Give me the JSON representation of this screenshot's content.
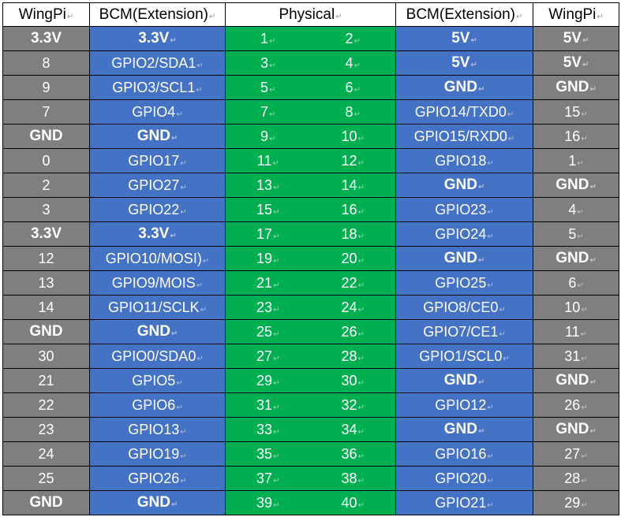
{
  "headers": {
    "wingpi_left": "WingPi",
    "bcm_left": "BCM(Extension)",
    "physical": "Physical",
    "bcm_right": "BCM(Extension)",
    "wingpi_right": "WingPi"
  },
  "rows": [
    {
      "wl": "3.3V",
      "bl": "3.3V",
      "pl": "1",
      "pr": "2",
      "br": "5V",
      "wr": "5V"
    },
    {
      "wl": "8",
      "bl": "GPIO2/SDA1",
      "pl": "3",
      "pr": "4",
      "br": "5V",
      "wr": "5V"
    },
    {
      "wl": "9",
      "bl": "GPIO3/SCL1",
      "pl": "5",
      "pr": "6",
      "br": "GND",
      "wr": "GND"
    },
    {
      "wl": "7",
      "bl": "GPIO4",
      "pl": "7",
      "pr": "8",
      "br": "GPIO14/TXD0",
      "wr": "15"
    },
    {
      "wl": "GND",
      "bl": "GND",
      "pl": "9",
      "pr": "10",
      "br": "GPIO15/RXD0",
      "wr": "16"
    },
    {
      "wl": "0",
      "bl": "GPIO17",
      "pl": "11",
      "pr": "12",
      "br": "GPIO18",
      "wr": "1"
    },
    {
      "wl": "2",
      "bl": "GPIO27",
      "pl": "13",
      "pr": "14",
      "br": "GND",
      "wr": "GND"
    },
    {
      "wl": "3",
      "bl": "GPIO22",
      "pl": "15",
      "pr": "16",
      "br": "GPIO23",
      "wr": "4"
    },
    {
      "wl": "3.3V",
      "bl": "3.3V",
      "pl": "17",
      "pr": "18",
      "br": "GPIO24",
      "wr": "5"
    },
    {
      "wl": "12",
      "bl": "GPIO10/MOSI)",
      "pl": "19",
      "pr": "20",
      "br": "GND",
      "wr": "GND"
    },
    {
      "wl": "13",
      "bl": "GPIO9/MOIS",
      "pl": "21",
      "pr": "22",
      "br": "GPIO25",
      "wr": "6"
    },
    {
      "wl": "14",
      "bl": "GPIO11/SCLK",
      "pl": "23",
      "pr": "24",
      "br": "GPIO8/CE0",
      "wr": "10"
    },
    {
      "wl": "GND",
      "bl": "GND",
      "pl": "25",
      "pr": "26",
      "br": "GPIO7/CE1",
      "wr": "11"
    },
    {
      "wl": "30",
      "bl": "GPIO0/SDA0",
      "pl": "27",
      "pr": "28",
      "br": "GPIO1/SCL0",
      "wr": "31"
    },
    {
      "wl": "21",
      "bl": "GPIO5",
      "pl": "29",
      "pr": "30",
      "br": "GND",
      "wr": "GND"
    },
    {
      "wl": "22",
      "bl": "GPIO6",
      "pl": "31",
      "pr": "32",
      "br": "GPIO12",
      "wr": "26"
    },
    {
      "wl": "23",
      "bl": "GPIO13",
      "pl": "33",
      "pr": "34",
      "br": "GND",
      "wr": "GND"
    },
    {
      "wl": "24",
      "bl": "GPIO19",
      "pl": "35",
      "pr": "36",
      "br": "GPIO16",
      "wr": "27"
    },
    {
      "wl": "25",
      "bl": "GPIO26",
      "pl": "37",
      "pr": "38",
      "br": "GPIO20",
      "wr": "28"
    },
    {
      "wl": "GND",
      "bl": "GND",
      "pl": "39",
      "pr": "40",
      "br": "GPIO21",
      "wr": "29"
    }
  ],
  "bold_values": [
    "3.3V",
    "5V",
    "GND"
  ],
  "paragraph_mark_glyph": "↵",
  "colors": {
    "wingpi_column": "#7f7f7f",
    "bcm_column": "#4472c4",
    "physical_column": "#00b050",
    "text_on_fill": "#ffffff",
    "header_background": "#ffffff",
    "grid_lines": "#000000"
  }
}
